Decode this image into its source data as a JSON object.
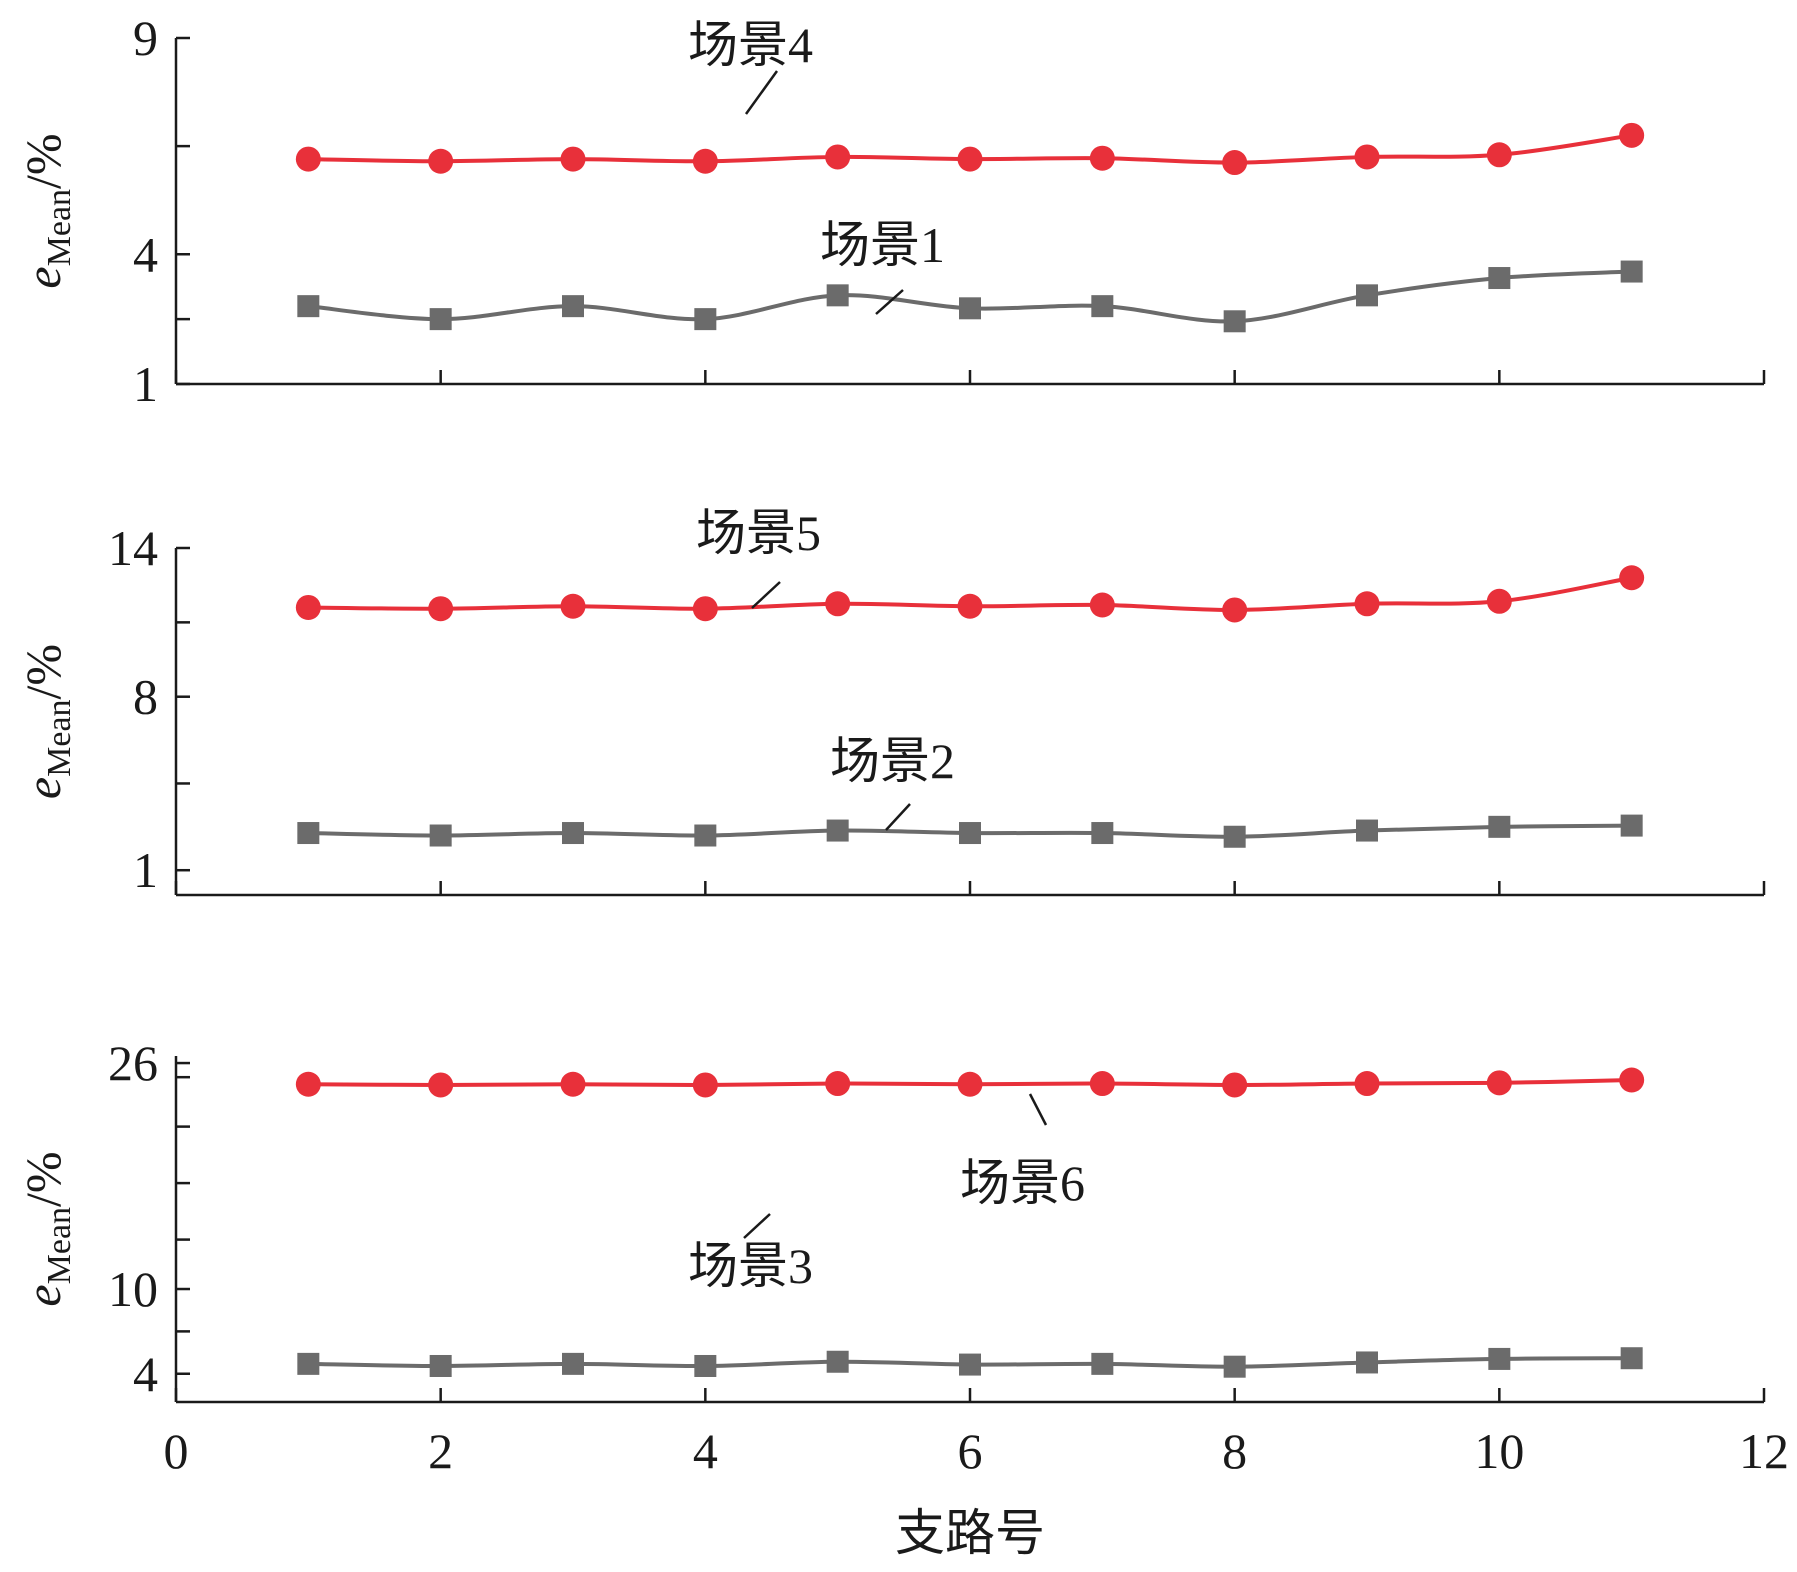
{
  "chart_data": [
    {
      "type": "line",
      "ylabel": {
        "symbol": "e",
        "subscript": "Mean",
        "unit": "/%"
      },
      "ylim": [
        1,
        9
      ],
      "yticks": [
        1,
        4,
        9
      ],
      "yminor": [
        2.5,
        6.5
      ],
      "xlim": [
        0,
        12
      ],
      "series": [
        {
          "name": "场景4",
          "marker": "circle",
          "color": "#e8303a",
          "x": [
            1,
            2,
            3,
            4,
            5,
            6,
            7,
            8,
            9,
            10,
            11
          ],
          "values": [
            6.2,
            6.15,
            6.2,
            6.15,
            6.25,
            6.2,
            6.22,
            6.12,
            6.25,
            6.3,
            6.75
          ]
        },
        {
          "name": "场景1",
          "marker": "square",
          "color": "#6b6b6b",
          "x": [
            1,
            2,
            3,
            4,
            5,
            6,
            7,
            8,
            9,
            10,
            11
          ],
          "values": [
            2.8,
            2.5,
            2.8,
            2.5,
            3.05,
            2.75,
            2.8,
            2.45,
            3.05,
            3.45,
            3.6
          ]
        }
      ]
    },
    {
      "type": "line",
      "ylabel": {
        "symbol": "e",
        "subscript": "Mean",
        "unit": "/%"
      },
      "ylim": [
        0,
        14
      ],
      "yticks": [
        1,
        8,
        14
      ],
      "yminor": [
        4.5,
        11
      ],
      "xlim": [
        0,
        12
      ],
      "series": [
        {
          "name": "场景5",
          "marker": "circle",
          "color": "#e8303a",
          "x": [
            1,
            2,
            3,
            4,
            5,
            6,
            7,
            8,
            9,
            10,
            11
          ],
          "values": [
            11.6,
            11.55,
            11.65,
            11.55,
            11.75,
            11.65,
            11.7,
            11.5,
            11.75,
            11.85,
            12.8
          ]
        },
        {
          "name": "场景2",
          "marker": "square",
          "color": "#6b6b6b",
          "x": [
            1,
            2,
            3,
            4,
            5,
            6,
            7,
            8,
            9,
            10,
            11
          ],
          "values": [
            2.5,
            2.4,
            2.5,
            2.4,
            2.6,
            2.5,
            2.5,
            2.35,
            2.6,
            2.75,
            2.8
          ]
        }
      ]
    },
    {
      "type": "line",
      "ylabel": {
        "symbol": "e",
        "subscript": "Mean",
        "unit": "/%"
      },
      "ylim": [
        2,
        26.5
      ],
      "yticks": [
        4,
        10,
        26
      ],
      "yminor": [
        7,
        13.5,
        17.5,
        21.5,
        25
      ],
      "xlim": [
        0,
        12
      ],
      "xticks": [
        0,
        2,
        4,
        6,
        8,
        10,
        12
      ],
      "xlabel": "支路号",
      "series": [
        {
          "name": "场景6",
          "marker": "circle",
          "color": "#e8303a",
          "x": [
            1,
            2,
            3,
            4,
            5,
            6,
            7,
            8,
            9,
            10,
            11
          ],
          "values": [
            24.5,
            24.45,
            24.5,
            24.45,
            24.55,
            24.5,
            24.55,
            24.45,
            24.55,
            24.6,
            24.8
          ]
        },
        {
          "name": "场景3",
          "marker": "square",
          "color": "#6b6b6b",
          "x": [
            1,
            2,
            3,
            4,
            5,
            6,
            7,
            8,
            9,
            10,
            11
          ],
          "values": [
            4.7,
            4.55,
            4.7,
            4.55,
            4.85,
            4.65,
            4.7,
            4.5,
            4.8,
            5.05,
            5.1
          ]
        }
      ]
    }
  ]
}
